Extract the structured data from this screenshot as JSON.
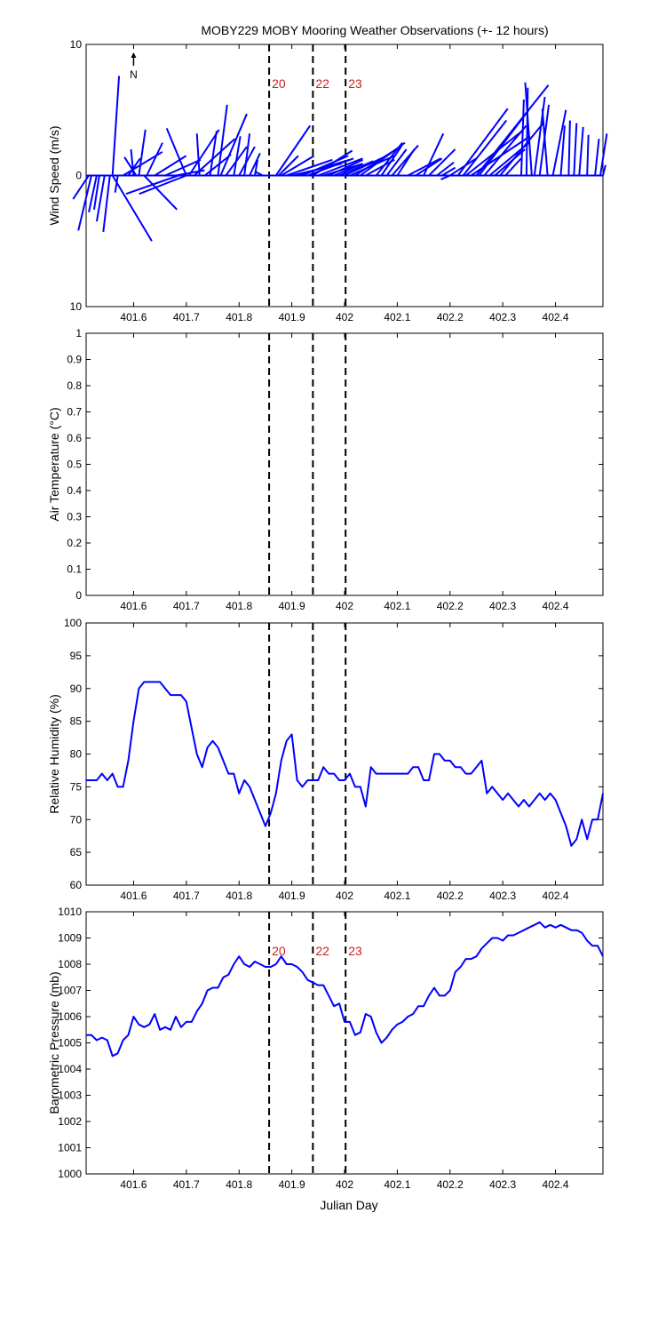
{
  "title": "MOBY229 MOBY Mooring Weather Observations (+- 12 hours)",
  "north_label": "N",
  "colors": {
    "series": "#0000ff",
    "event_text": "#cc2222",
    "axis": "#000000"
  },
  "x_ticks": [
    "401.6",
    "401.7",
    "401.8",
    "401.9",
    "402",
    "402.1",
    "402.2",
    "402.3",
    "402.4"
  ],
  "x_label": "Julian Day",
  "chart_data": [
    {
      "type": "vector",
      "name": "wind",
      "ylabel": "Wind Speed (m/s)",
      "x_range": [
        401.51,
        402.49
      ],
      "ylim": [
        -10,
        10
      ],
      "y_tick_labels": [
        "10",
        "0",
        "10"
      ],
      "events": [
        {
          "x": 401.857,
          "label": "20"
        },
        {
          "x": 401.94,
          "label": "22"
        },
        {
          "x": 402.002,
          "label": "23"
        }
      ],
      "vectors": [
        [
          401.515,
          -1.2,
          -1.8
        ],
        [
          401.52,
          -1.0,
          -4.2
        ],
        [
          401.53,
          -0.6,
          -2.8
        ],
        [
          401.535,
          -0.4,
          -2.6
        ],
        [
          401.545,
          -0.6,
          -3.5
        ],
        [
          401.555,
          -0.5,
          -4.3
        ],
        [
          401.56,
          3.0,
          -5.0
        ],
        [
          401.56,
          0.5,
          7.6
        ],
        [
          401.57,
          -0.2,
          -1.3
        ],
        [
          401.58,
          3.0,
          1.8
        ],
        [
          401.59,
          0.9,
          1.3
        ],
        [
          401.6,
          -0.2,
          2.0
        ],
        [
          401.605,
          -0.9,
          1.4
        ],
        [
          401.61,
          0.5,
          3.5
        ],
        [
          401.62,
          2.5,
          -2.6
        ],
        [
          401.625,
          1.2,
          2.5
        ],
        [
          401.64,
          2.4,
          1.5
        ],
        [
          401.66,
          2.7,
          1.2
        ],
        [
          401.68,
          2.2,
          0.4
        ],
        [
          401.685,
          -4.0,
          -1.4
        ],
        [
          401.7,
          -3.6,
          -1.4
        ],
        [
          401.7,
          -1.5,
          3.6
        ],
        [
          401.705,
          2.3,
          3.5
        ],
        [
          401.715,
          3.1,
          2.8
        ],
        [
          401.725,
          -0.2,
          3.2
        ],
        [
          401.735,
          2.0,
          1.6
        ],
        [
          401.745,
          0.5,
          3.4
        ],
        [
          401.76,
          0.7,
          5.4
        ],
        [
          401.765,
          2.0,
          4.7
        ],
        [
          401.775,
          1.6,
          2.2
        ],
        [
          401.79,
          0.5,
          3.0
        ],
        [
          401.8,
          1.2,
          2.2
        ],
        [
          401.81,
          0.4,
          3.2
        ],
        [
          401.82,
          0.8,
          1.7
        ],
        [
          401.83,
          0.2,
          1.2
        ],
        [
          401.845,
          -0.6,
          0.3
        ],
        [
          401.87,
          2.6,
          3.8
        ],
        [
          401.875,
          1.5,
          1.5
        ],
        [
          401.88,
          2.5,
          1.5
        ],
        [
          401.89,
          3.5,
          1.2
        ],
        [
          401.9,
          3.8,
          0.9
        ],
        [
          401.91,
          4.0,
          1.2
        ],
        [
          401.92,
          3.5,
          1.5
        ],
        [
          401.93,
          3.5,
          1.3
        ],
        [
          401.94,
          3.0,
          1.9
        ],
        [
          401.95,
          3.4,
          1.3
        ],
        [
          401.96,
          3.0,
          0.9
        ],
        [
          401.97,
          2.6,
          1.2
        ],
        [
          401.98,
          2.2,
          0.9
        ],
        [
          401.99,
          2.6,
          1.1
        ],
        [
          402.0,
          3.0,
          1.4
        ],
        [
          402.01,
          3.4,
          1.5
        ],
        [
          402.02,
          3.6,
          2.3
        ],
        [
          402.03,
          3.4,
          2.5
        ],
        [
          402.04,
          2.2,
          1.2
        ],
        [
          402.06,
          2.0,
          2.5
        ],
        [
          402.07,
          1.5,
          2.2
        ],
        [
          402.08,
          1.5,
          2.0
        ],
        [
          402.09,
          2.0,
          2.3
        ],
        [
          402.1,
          1.3,
          2.0
        ],
        [
          402.12,
          2.5,
          1.3
        ],
        [
          402.135,
          2.0,
          1.3
        ],
        [
          402.15,
          1.5,
          3.2
        ],
        [
          402.16,
          2.0,
          2.0
        ],
        [
          402.175,
          1.3,
          1.0
        ],
        [
          402.185,
          1.0,
          0.6
        ],
        [
          402.2,
          2.0,
          1.3
        ],
        [
          402.2,
          -0.7,
          -0.3
        ],
        [
          402.215,
          3.8,
          5.1
        ],
        [
          402.225,
          3.3,
          4.2
        ],
        [
          402.23,
          4.3,
          3.4
        ],
        [
          402.24,
          4.5,
          3.0
        ],
        [
          402.25,
          5.5,
          6.9
        ],
        [
          402.255,
          3.8,
          5.0
        ],
        [
          402.265,
          3.2,
          3.8
        ],
        [
          402.275,
          3.0,
          2.5
        ],
        [
          402.285,
          2.3,
          2.0
        ],
        [
          402.295,
          3.3,
          4.0
        ],
        [
          402.305,
          1.2,
          1.3
        ],
        [
          402.335,
          0.2,
          5.8
        ],
        [
          402.345,
          0.1,
          6.7
        ],
        [
          402.355,
          -0.5,
          7.1
        ],
        [
          402.36,
          0.8,
          6.0
        ],
        [
          402.37,
          0.7,
          5.4
        ],
        [
          402.385,
          -0.4,
          5.1
        ],
        [
          402.395,
          1.0,
          5.0
        ],
        [
          402.41,
          0.3,
          3.8
        ],
        [
          402.425,
          0.1,
          4.2
        ],
        [
          402.435,
          0.2,
          4.0
        ],
        [
          402.445,
          0.3,
          3.7
        ],
        [
          402.46,
          0.1,
          3.1
        ],
        [
          402.475,
          0.3,
          2.8
        ],
        [
          402.485,
          0.5,
          3.2
        ],
        [
          402.49,
          0.2,
          0.8
        ]
      ]
    },
    {
      "type": "line",
      "name": "air-temperature",
      "ylabel": "Air Temperature (°C)",
      "x_range": [
        401.51,
        402.49
      ],
      "ylim": [
        0,
        1
      ],
      "y_tick_labels": [
        "0",
        "0.1",
        "0.2",
        "0.3",
        "0.4",
        "0.5",
        "0.6",
        "0.7",
        "0.8",
        "0.9",
        "1"
      ],
      "events": [
        {
          "x": 401.857,
          "label": ""
        },
        {
          "x": 401.94,
          "label": ""
        },
        {
          "x": 402.002,
          "label": ""
        }
      ],
      "points": []
    },
    {
      "type": "line",
      "name": "relative-humidity",
      "ylabel": "Relative Humidity (%)",
      "x_range": [
        401.51,
        402.49
      ],
      "ylim": [
        60,
        100
      ],
      "y_tick_labels": [
        "60",
        "65",
        "70",
        "75",
        "80",
        "85",
        "90",
        "95",
        "100"
      ],
      "events": [
        {
          "x": 401.857,
          "label": ""
        },
        {
          "x": 401.94,
          "label": ""
        },
        {
          "x": 402.002,
          "label": ""
        }
      ],
      "points": [
        [
          401.51,
          76
        ],
        [
          401.53,
          76
        ],
        [
          401.54,
          77
        ],
        [
          401.55,
          76
        ],
        [
          401.56,
          77
        ],
        [
          401.57,
          75
        ],
        [
          401.58,
          75
        ],
        [
          401.59,
          79
        ],
        [
          401.6,
          85
        ],
        [
          401.61,
          90
        ],
        [
          401.62,
          91
        ],
        [
          401.65,
          91
        ],
        [
          401.67,
          89
        ],
        [
          401.69,
          89
        ],
        [
          401.7,
          88
        ],
        [
          401.72,
          80
        ],
        [
          401.73,
          78
        ],
        [
          401.74,
          81
        ],
        [
          401.75,
          82
        ],
        [
          401.76,
          81
        ],
        [
          401.78,
          77
        ],
        [
          401.79,
          77
        ],
        [
          401.8,
          74
        ],
        [
          401.81,
          76
        ],
        [
          401.82,
          75
        ],
        [
          401.84,
          71
        ],
        [
          401.85,
          69
        ],
        [
          401.86,
          71
        ],
        [
          401.87,
          74
        ],
        [
          401.88,
          79
        ],
        [
          401.89,
          82
        ],
        [
          401.9,
          83
        ],
        [
          401.91,
          76
        ],
        [
          401.92,
          75
        ],
        [
          401.93,
          76
        ],
        [
          401.94,
          76
        ],
        [
          401.95,
          76
        ],
        [
          401.96,
          78
        ],
        [
          401.97,
          77
        ],
        [
          401.98,
          77
        ],
        [
          401.99,
          76
        ],
        [
          402.0,
          76
        ],
        [
          402.01,
          77
        ],
        [
          402.02,
          75
        ],
        [
          402.03,
          75
        ],
        [
          402.04,
          72
        ],
        [
          402.05,
          78
        ],
        [
          402.06,
          77
        ],
        [
          402.12,
          77
        ],
        [
          402.13,
          78
        ],
        [
          402.14,
          78
        ],
        [
          402.15,
          76
        ],
        [
          402.16,
          76
        ],
        [
          402.17,
          80
        ],
        [
          402.18,
          80
        ],
        [
          402.19,
          79
        ],
        [
          402.2,
          79
        ],
        [
          402.21,
          78
        ],
        [
          402.22,
          78
        ],
        [
          402.23,
          77
        ],
        [
          402.24,
          77
        ],
        [
          402.25,
          78
        ],
        [
          402.26,
          79
        ],
        [
          402.27,
          74
        ],
        [
          402.28,
          75
        ],
        [
          402.29,
          74
        ],
        [
          402.3,
          73
        ],
        [
          402.31,
          74
        ],
        [
          402.32,
          73
        ],
        [
          402.33,
          72
        ],
        [
          402.34,
          73
        ],
        [
          402.35,
          72
        ],
        [
          402.36,
          73
        ],
        [
          402.37,
          74
        ],
        [
          402.38,
          73
        ],
        [
          402.39,
          74
        ],
        [
          402.4,
          73
        ],
        [
          402.41,
          71
        ],
        [
          402.42,
          69
        ],
        [
          402.43,
          66
        ],
        [
          402.44,
          67
        ],
        [
          402.45,
          70
        ],
        [
          402.46,
          67
        ],
        [
          402.47,
          70
        ],
        [
          402.48,
          70
        ],
        [
          402.49,
          74
        ]
      ]
    },
    {
      "type": "line",
      "name": "barometric-pressure",
      "ylabel": "Barometric Pressure (mb)",
      "x_range": [
        401.51,
        402.49
      ],
      "ylim": [
        1000,
        1010
      ],
      "y_tick_labels": [
        "1000",
        "1001",
        "1002",
        "1003",
        "1004",
        "1005",
        "1006",
        "1007",
        "1008",
        "1009",
        "1010"
      ],
      "events": [
        {
          "x": 401.857,
          "label": "20"
        },
        {
          "x": 401.94,
          "label": "22"
        },
        {
          "x": 402.002,
          "label": "23"
        }
      ],
      "points": [
        [
          401.51,
          1005.3
        ],
        [
          401.52,
          1005.3
        ],
        [
          401.53,
          1005.1
        ],
        [
          401.54,
          1005.2
        ],
        [
          401.55,
          1005.1
        ],
        [
          401.56,
          1004.5
        ],
        [
          401.57,
          1004.6
        ],
        [
          401.58,
          1005.1
        ],
        [
          401.59,
          1005.3
        ],
        [
          401.6,
          1006.0
        ],
        [
          401.61,
          1005.7
        ],
        [
          401.62,
          1005.6
        ],
        [
          401.63,
          1005.7
        ],
        [
          401.64,
          1006.1
        ],
        [
          401.65,
          1005.5
        ],
        [
          401.66,
          1005.6
        ],
        [
          401.67,
          1005.5
        ],
        [
          401.68,
          1006.0
        ],
        [
          401.69,
          1005.6
        ],
        [
          401.7,
          1005.8
        ],
        [
          401.71,
          1005.8
        ],
        [
          401.72,
          1006.2
        ],
        [
          401.73,
          1006.5
        ],
        [
          401.74,
          1007.0
        ],
        [
          401.75,
          1007.1
        ],
        [
          401.76,
          1007.1
        ],
        [
          401.77,
          1007.5
        ],
        [
          401.78,
          1007.6
        ],
        [
          401.79,
          1008.0
        ],
        [
          401.8,
          1008.3
        ],
        [
          401.81,
          1008.0
        ],
        [
          401.82,
          1007.9
        ],
        [
          401.83,
          1008.1
        ],
        [
          401.84,
          1008.0
        ],
        [
          401.85,
          1007.9
        ],
        [
          401.86,
          1007.9
        ],
        [
          401.87,
          1008.0
        ],
        [
          401.88,
          1008.3
        ],
        [
          401.89,
          1008.0
        ],
        [
          401.9,
          1008.0
        ],
        [
          401.91,
          1007.9
        ],
        [
          401.92,
          1007.7
        ],
        [
          401.93,
          1007.4
        ],
        [
          401.94,
          1007.3
        ],
        [
          401.95,
          1007.2
        ],
        [
          401.96,
          1007.2
        ],
        [
          401.97,
          1006.8
        ],
        [
          401.98,
          1006.4
        ],
        [
          401.99,
          1006.5
        ],
        [
          402.0,
          1005.8
        ],
        [
          402.01,
          1005.8
        ],
        [
          402.02,
          1005.3
        ],
        [
          402.03,
          1005.4
        ],
        [
          402.04,
          1006.1
        ],
        [
          402.05,
          1006.0
        ],
        [
          402.06,
          1005.4
        ],
        [
          402.07,
          1005.0
        ],
        [
          402.08,
          1005.2
        ],
        [
          402.09,
          1005.5
        ],
        [
          402.1,
          1005.7
        ],
        [
          402.11,
          1005.8
        ],
        [
          402.12,
          1006.0
        ],
        [
          402.13,
          1006.1
        ],
        [
          402.14,
          1006.4
        ],
        [
          402.15,
          1006.4
        ],
        [
          402.16,
          1006.8
        ],
        [
          402.17,
          1007.1
        ],
        [
          402.18,
          1006.8
        ],
        [
          402.19,
          1006.8
        ],
        [
          402.2,
          1007.0
        ],
        [
          402.21,
          1007.7
        ],
        [
          402.22,
          1007.9
        ],
        [
          402.23,
          1008.2
        ],
        [
          402.24,
          1008.2
        ],
        [
          402.25,
          1008.3
        ],
        [
          402.26,
          1008.6
        ],
        [
          402.27,
          1008.8
        ],
        [
          402.28,
          1009.0
        ],
        [
          402.29,
          1009.0
        ],
        [
          402.3,
          1008.9
        ],
        [
          402.31,
          1009.1
        ],
        [
          402.32,
          1009.1
        ],
        [
          402.33,
          1009.2
        ],
        [
          402.34,
          1009.3
        ],
        [
          402.35,
          1009.4
        ],
        [
          402.36,
          1009.5
        ],
        [
          402.37,
          1009.6
        ],
        [
          402.38,
          1009.4
        ],
        [
          402.39,
          1009.5
        ],
        [
          402.4,
          1009.4
        ],
        [
          402.41,
          1009.5
        ],
        [
          402.42,
          1009.4
        ],
        [
          402.43,
          1009.3
        ],
        [
          402.44,
          1009.3
        ],
        [
          402.45,
          1009.2
        ],
        [
          402.46,
          1008.9
        ],
        [
          402.47,
          1008.7
        ],
        [
          402.48,
          1008.7
        ],
        [
          402.49,
          1008.3
        ]
      ]
    }
  ]
}
